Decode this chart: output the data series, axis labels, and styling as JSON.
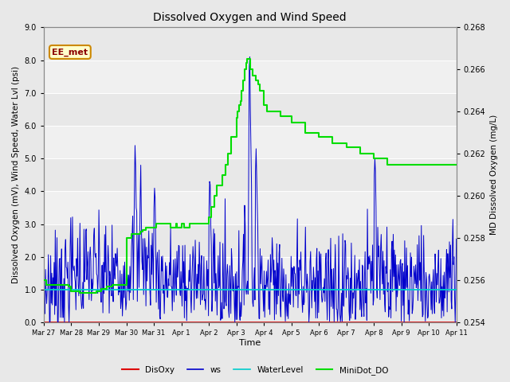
{
  "title": "Dissolved Oxygen and Wind Speed",
  "ylabel_left": "Dissolved Oxygen (mV), Wind Speed, Water Lvl (psi)",
  "ylabel_right": "MD Dissolved Oxygen (mg/L)",
  "xlabel": "Time",
  "ylim_left": [
    0.0,
    9.0
  ],
  "ylim_right": [
    0.254,
    0.268
  ],
  "yticks_left": [
    0.0,
    1.0,
    2.0,
    3.0,
    4.0,
    5.0,
    6.0,
    7.0,
    8.0,
    9.0
  ],
  "yticks_right": [
    0.254,
    0.256,
    0.258,
    0.26,
    0.262,
    0.264,
    0.266,
    0.268
  ],
  "x_tick_labels": [
    "Mar 27",
    "Mar 28",
    "Mar 29",
    "Mar 30",
    "Mar 31",
    "Apr 1",
    "Apr 2",
    "Apr 3",
    "Apr 4",
    "Apr 5",
    "Apr 6",
    "Apr 7",
    "Apr 8",
    "Apr 9",
    "Apr 10",
    "Apr 11"
  ],
  "station_label": "EE_met",
  "fig_bg_color": "#e8e8e8",
  "plot_bg_color": "#f0f0f0",
  "grid_bg_colors": [
    "#e8e8e8",
    "#f0f0f0"
  ],
  "colors": {
    "DisOxy": "#dd0000",
    "ws": "#0000cc",
    "WaterLevel": "#00cccc",
    "MiniDot_DO": "#00dd00"
  },
  "water_level_value": 1.0,
  "disoxy_value": 0.0,
  "minidot_times": [
    0,
    0.08,
    0.5,
    0.9,
    1.0,
    1.3,
    1.6,
    1.9,
    2.1,
    2.3,
    2.5,
    2.7,
    3.0,
    3.1,
    3.2,
    3.5,
    3.6,
    3.7,
    3.9,
    4.0,
    4.1,
    4.2,
    4.5,
    4.6,
    4.7,
    4.8,
    4.85,
    4.9,
    5.0,
    5.1,
    5.2,
    5.3,
    5.4,
    5.5,
    5.6,
    5.7,
    5.8,
    5.9,
    6.0,
    6.1,
    6.2,
    6.3,
    6.5,
    6.6,
    6.7,
    6.8,
    7.0,
    7.05,
    7.1,
    7.15,
    7.2,
    7.25,
    7.3,
    7.35,
    7.4,
    7.5,
    7.6,
    7.7,
    7.8,
    7.85,
    8.0,
    8.1,
    8.5,
    8.6,
    8.7,
    9.0,
    9.5,
    10.0,
    10.5,
    11.0,
    11.5,
    12.0,
    12.5,
    13.0,
    13.5,
    14.0,
    14.5,
    15.0
  ],
  "minidot_vals": [
    0.256,
    0.2558,
    0.2558,
    0.2557,
    0.2555,
    0.2554,
    0.2554,
    0.2555,
    0.2556,
    0.2557,
    0.2558,
    0.2558,
    0.258,
    0.258,
    0.2582,
    0.2583,
    0.2584,
    0.2585,
    0.2585,
    0.2585,
    0.2587,
    0.2587,
    0.2587,
    0.2585,
    0.2585,
    0.2587,
    0.2585,
    0.2585,
    0.2587,
    0.2585,
    0.2585,
    0.2587,
    0.2587,
    0.2587,
    0.2587,
    0.2587,
    0.2587,
    0.2587,
    0.259,
    0.2595,
    0.26,
    0.2605,
    0.261,
    0.2615,
    0.262,
    0.2628,
    0.2637,
    0.264,
    0.2643,
    0.2645,
    0.265,
    0.2655,
    0.266,
    0.2663,
    0.2665,
    0.266,
    0.2657,
    0.2655,
    0.2653,
    0.265,
    0.2643,
    0.264,
    0.264,
    0.2638,
    0.2638,
    0.2635,
    0.263,
    0.2628,
    0.2625,
    0.2623,
    0.262,
    0.2618,
    0.2615,
    0.2615,
    0.2615,
    0.2615,
    0.2615,
    0.2615
  ]
}
